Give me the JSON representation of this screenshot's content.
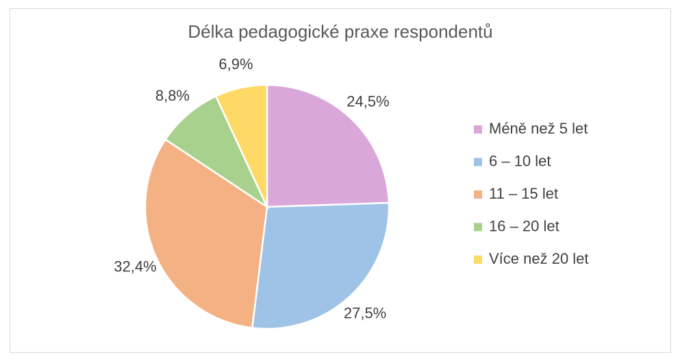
{
  "chart_data": {
    "type": "pie",
    "title": "Délka pedagogické praxe respondentů",
    "categories": [
      "Méně než 5 let",
      "6 – 10 let",
      "11 – 15 let",
      "16 – 20 let",
      "Více než 20 let"
    ],
    "values": [
      24.5,
      27.5,
      32.4,
      8.8,
      6.9
    ],
    "value_labels": [
      "24,5%",
      "27,5%",
      "32,4%",
      "8,8%",
      "6,9%"
    ],
    "colors": [
      "#d9a7da",
      "#9fc3e7",
      "#f4b183",
      "#a9d18e",
      "#ffd966"
    ],
    "legend": "right"
  }
}
